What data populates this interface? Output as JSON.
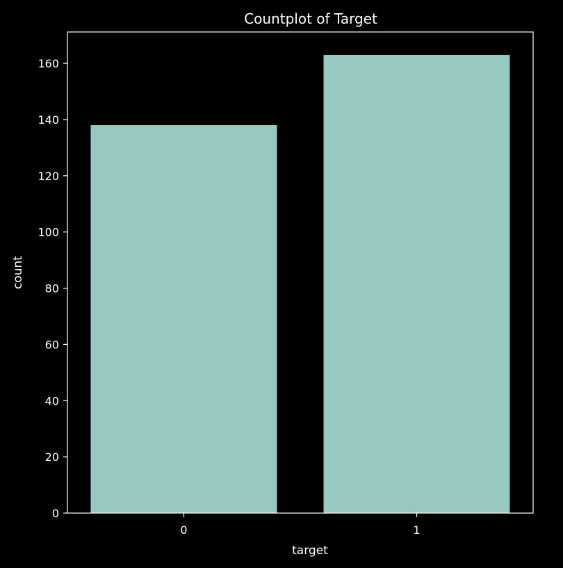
{
  "chart_data": {
    "type": "bar",
    "title": "Countplot of Target",
    "xlabel": "target",
    "ylabel": "count",
    "categories": [
      "0",
      "1"
    ],
    "values": [
      138,
      163
    ],
    "ylim": [
      0,
      171.15
    ],
    "yticks": [
      0,
      20,
      40,
      60,
      80,
      100,
      120,
      140,
      160
    ],
    "grid": false,
    "legend": "none",
    "colors": {
      "background": "#000000",
      "bar": "#98c9c1",
      "axis": "#ffffff",
      "text": "#ffffff"
    }
  }
}
